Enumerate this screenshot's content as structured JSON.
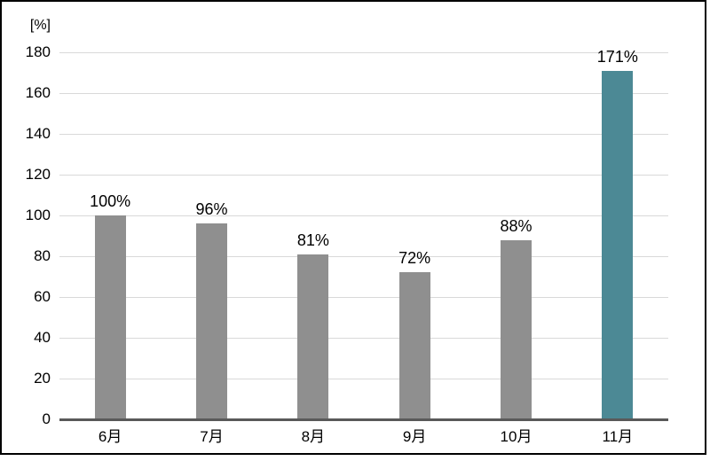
{
  "page": {
    "background": "#ffffff",
    "frame_border_color": "#000000"
  },
  "chart_data": {
    "type": "bar",
    "title": "",
    "unit_label": "[%]",
    "categories": [
      "6月",
      "7月",
      "8月",
      "9月",
      "10月",
      "11月"
    ],
    "values": [
      100,
      96,
      81,
      72,
      88,
      171
    ],
    "data_labels": [
      "100%",
      "96%",
      "81%",
      "72%",
      "88%",
      "171%"
    ],
    "xlabel": "",
    "ylabel": "[%]",
    "ylim": [
      0,
      180
    ],
    "ytick_step": 20,
    "ytick_labels": [
      "0",
      "20",
      "40",
      "60",
      "80",
      "100",
      "120",
      "140",
      "160",
      "180"
    ],
    "grid": true,
    "legend_position": "none",
    "colors": {
      "bar_default": "#8F8F8F",
      "bar_highlight": "#4C8995",
      "gridline": "#D9D9D9",
      "axis_line": "#595959",
      "text": "#000000"
    },
    "highlight_index": 5
  }
}
